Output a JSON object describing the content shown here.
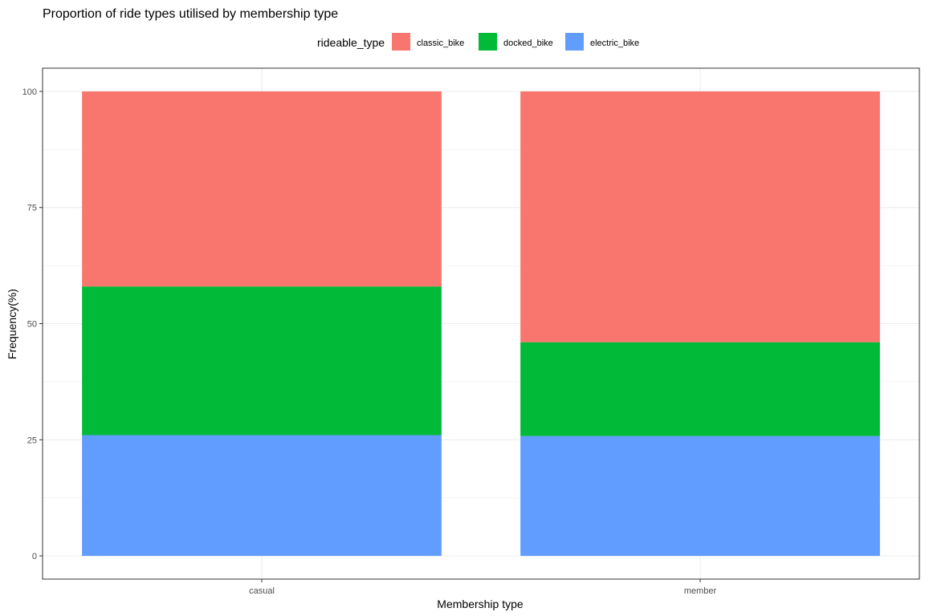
{
  "chart_data": {
    "type": "bar",
    "stacked": true,
    "title": "Proportion of ride types utilised by membership type",
    "xlabel": "Membership type",
    "ylabel": "Frequency(%)",
    "ylim": [
      0,
      105
    ],
    "yticks": [
      0,
      25,
      50,
      75,
      100
    ],
    "grid": true,
    "legend_position": "top",
    "legend_title": "rideable_type",
    "categories": [
      "casual",
      "member"
    ],
    "series": [
      {
        "name": "electric_bike",
        "color": "#619CFF",
        "values": [
          26,
          25.8
        ]
      },
      {
        "name": "docked_bike",
        "color": "#00BA38",
        "values": [
          32,
          20.2
        ]
      },
      {
        "name": "classic_bike",
        "color": "#F8766D",
        "values": [
          42,
          54
        ]
      }
    ],
    "legend_order": [
      "classic_bike",
      "docked_bike",
      "electric_bike"
    ]
  }
}
